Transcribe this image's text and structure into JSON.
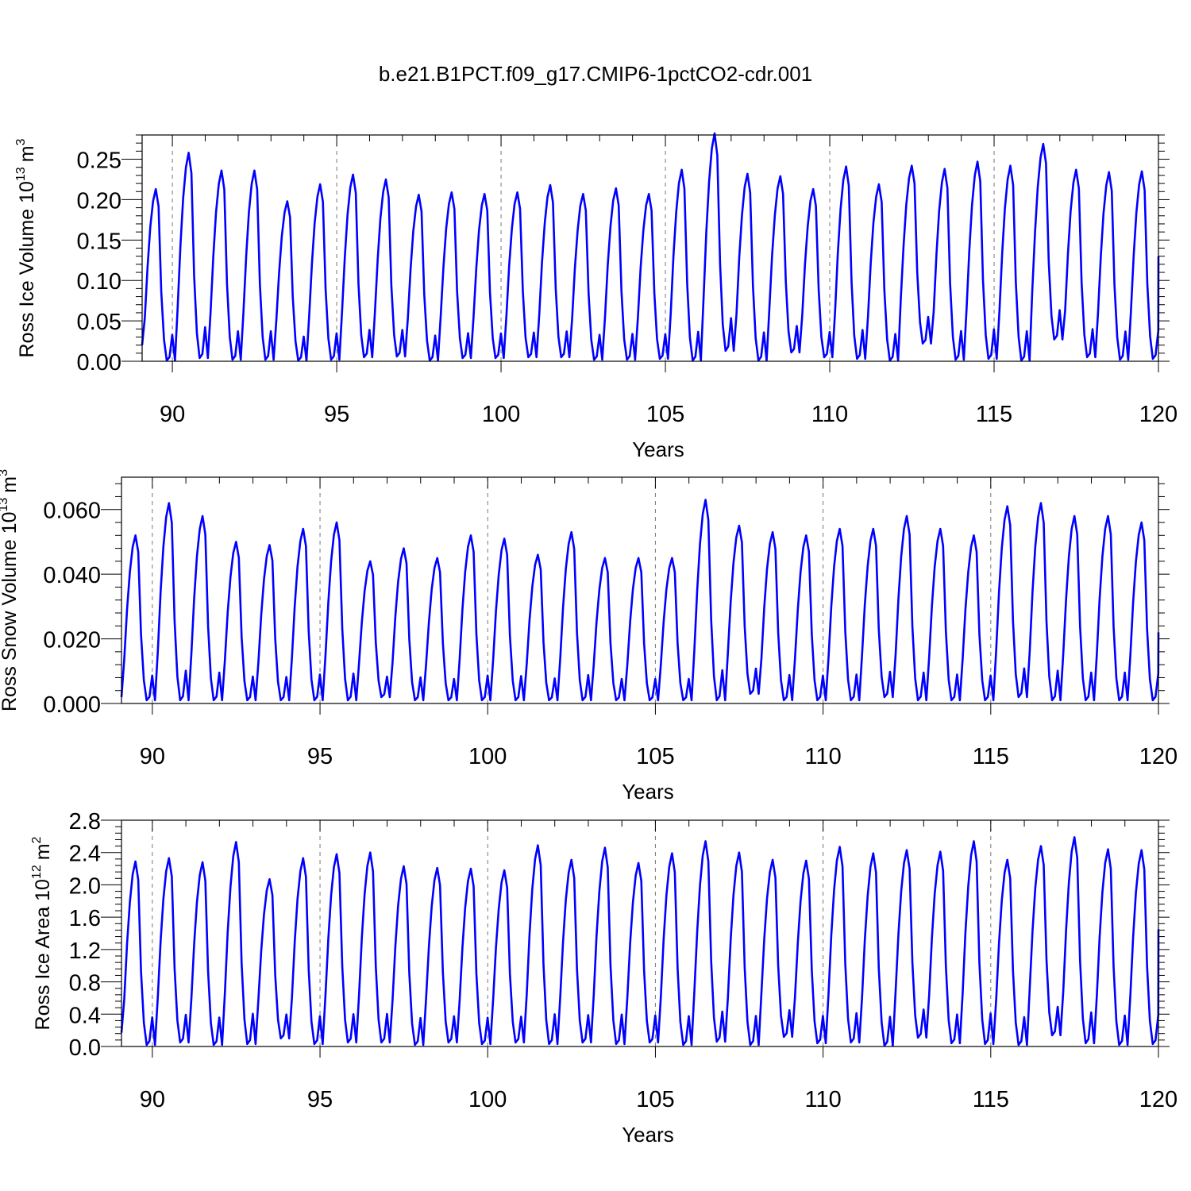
{
  "title": "b.e21.B1PCT.f09_g17.CMIP6-1pctCO2-cdr.001",
  "line_color": "#0000ff",
  "chart_data": [
    {
      "type": "line",
      "name": "ross-ice-volume",
      "ylabel": "Ross Ice Volume 10",
      "ylabel_exp": "13",
      "ylabel_unit": "m",
      "ylabel_unit_exp": "3",
      "xlabel": "Years",
      "xlim": [
        89.08,
        120
      ],
      "ylim": [
        0,
        0.28
      ],
      "xticks": [
        90,
        95,
        100,
        105,
        110,
        115,
        120
      ],
      "xtick_labels": [
        "90",
        "95",
        "100",
        "105",
        "110",
        "115",
        "120"
      ],
      "yticks": [
        0,
        0.05,
        0.1,
        0.15,
        0.2,
        0.25
      ],
      "ytick_labels": [
        "0.00",
        "0.05",
        "0.10",
        "0.15",
        "0.20",
        "0.25"
      ],
      "x_start": 89.08,
      "x_step": 0.08333,
      "peaks": [
        0.213,
        0.258,
        0.236,
        0.236,
        0.198,
        0.219,
        0.231,
        0.225,
        0.206,
        0.209,
        0.207,
        0.209,
        0.218,
        0.207,
        0.214,
        0.207,
        0.237,
        0.282,
        0.232,
        0.229,
        0.213,
        0.241,
        0.219,
        0.242,
        0.238,
        0.247,
        0.242,
        0.269,
        0.237,
        0.234,
        0.235
      ],
      "troughs": [
        0.001,
        0.004,
        0.002,
        0.002,
        0.001,
        0.002,
        0.005,
        0.006,
        0.001,
        0.004,
        0.004,
        0.005,
        0.005,
        0.002,
        0.002,
        0.003,
        0.001,
        0.013,
        0.001,
        0.011,
        0.005,
        0.003,
        0.001,
        0.022,
        0.002,
        0.003,
        0.001,
        0.027,
        0.005,
        0.002,
        0.003
      ],
      "x_start_value": 0.02,
      "x_end_value": 0.13
    },
    {
      "type": "line",
      "name": "ross-snow-volume",
      "ylabel": "Ross Snow Volume 10",
      "ylabel_exp": "13",
      "ylabel_unit": "m",
      "ylabel_unit_exp": "3",
      "xlabel": "Years",
      "xlim": [
        89.08,
        120
      ],
      "ylim": [
        0,
        0.07
      ],
      "xticks": [
        90,
        95,
        100,
        105,
        110,
        115,
        120
      ],
      "xtick_labels": [
        "90",
        "95",
        "100",
        "105",
        "110",
        "115",
        "120"
      ],
      "yticks": [
        0,
        0.02,
        0.04,
        0.06
      ],
      "ytick_labels": [
        "0.000",
        "0.020",
        "0.040",
        "0.060"
      ],
      "x_start": 89.08,
      "x_step": 0.08333,
      "peaks": [
        0.052,
        0.062,
        0.058,
        0.05,
        0.049,
        0.054,
        0.056,
        0.044,
        0.048,
        0.045,
        0.052,
        0.051,
        0.046,
        0.053,
        0.045,
        0.045,
        0.045,
        0.063,
        0.055,
        0.053,
        0.052,
        0.054,
        0.054,
        0.058,
        0.054,
        0.052,
        0.061,
        0.062,
        0.058,
        0.058,
        0.056
      ],
      "troughs": [
        0.001,
        0.001,
        0.001,
        0.001,
        0.001,
        0.001,
        0.001,
        0.002,
        0.001,
        0.001,
        0.001,
        0.001,
        0.001,
        0.001,
        0.001,
        0.001,
        0.001,
        0.001,
        0.003,
        0.001,
        0.001,
        0.001,
        0.002,
        0.001,
        0.001,
        0.001,
        0.002,
        0.001,
        0.001,
        0.001,
        0.001
      ],
      "x_start_value": 0.002,
      "x_end_value": 0.022
    },
    {
      "type": "line",
      "name": "ross-ice-area",
      "ylabel": "Ross Ice Area 10",
      "ylabel_exp": "12",
      "ylabel_unit": "m",
      "ylabel_unit_exp": "2",
      "xlabel": "Years",
      "xlim": [
        89.08,
        120
      ],
      "ylim": [
        0,
        2.8
      ],
      "xticks": [
        90,
        95,
        100,
        105,
        110,
        115,
        120
      ],
      "xtick_labels": [
        "90",
        "95",
        "100",
        "105",
        "110",
        "115",
        "120"
      ],
      "yticks": [
        0,
        0.4,
        0.8,
        1.2,
        1.6,
        2.0,
        2.4,
        2.8
      ],
      "ytick_labels": [
        "0.0",
        "0.4",
        "0.8",
        "1.2",
        "1.6",
        "2.0",
        "2.4",
        "2.8"
      ],
      "x_start": 89.08,
      "x_step": 0.08333,
      "peaks": [
        2.29,
        2.33,
        2.28,
        2.53,
        2.07,
        2.33,
        2.38,
        2.4,
        2.23,
        2.21,
        2.2,
        2.18,
        2.49,
        2.31,
        2.46,
        2.27,
        2.39,
        2.54,
        2.4,
        2.31,
        2.3,
        2.47,
        2.39,
        2.43,
        2.41,
        2.54,
        2.31,
        2.48,
        2.59,
        2.44,
        2.43
      ],
      "troughs": [
        0.02,
        0.05,
        0.02,
        0.03,
        0.1,
        0.03,
        0.05,
        0.05,
        0.02,
        0.05,
        0.03,
        0.05,
        0.03,
        0.05,
        0.03,
        0.05,
        0.02,
        0.06,
        0.02,
        0.12,
        0.04,
        0.05,
        0.01,
        0.11,
        0.04,
        0.03,
        0.02,
        0.14,
        0.04,
        0.02,
        0.03
      ],
      "x_start_value": 0.17,
      "x_end_value": 1.45
    }
  ]
}
